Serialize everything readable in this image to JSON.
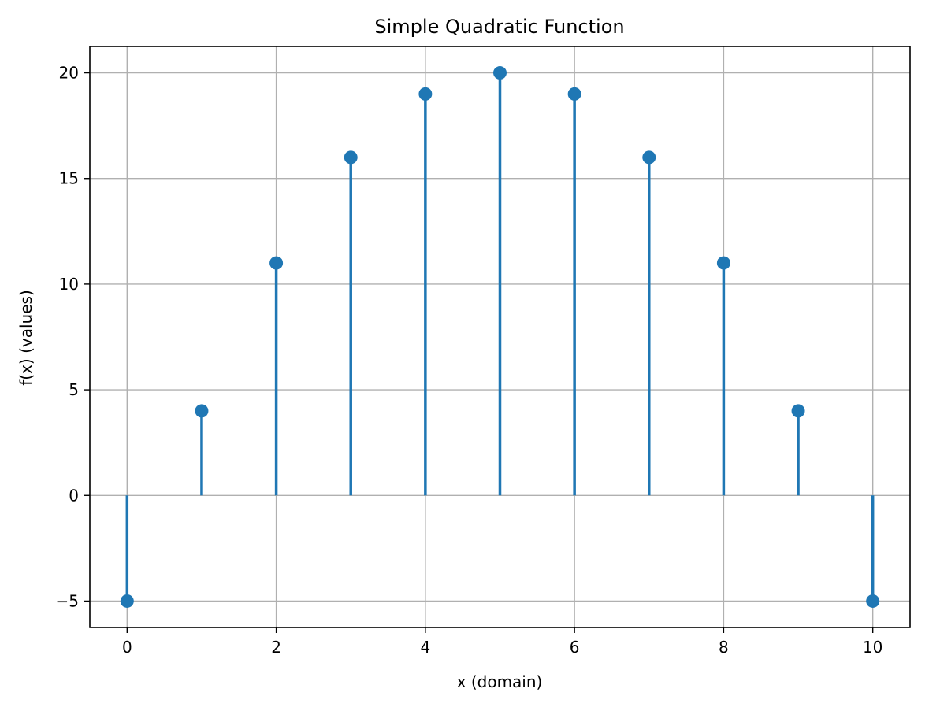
{
  "chart_data": {
    "type": "stem",
    "title": "Simple Quadratic Function",
    "xlabel": "x (domain)",
    "ylabel": "f(x) (values)",
    "x": [
      0,
      1,
      2,
      3,
      4,
      5,
      6,
      7,
      8,
      9,
      10
    ],
    "y": [
      -5,
      4,
      11,
      16,
      19,
      20,
      19,
      16,
      11,
      4,
      -5
    ],
    "xlim": [
      -0.5,
      10.5
    ],
    "ylim": [
      -6.25,
      21.25
    ],
    "xticks": [
      0,
      2,
      4,
      6,
      8,
      10
    ],
    "xtick_labels": [
      "0",
      "2",
      "4",
      "6",
      "8",
      "10"
    ],
    "yticks": [
      -5,
      0,
      5,
      10,
      15,
      20
    ],
    "ytick_labels": [
      "−5",
      "0",
      "5",
      "10",
      "15",
      "20"
    ],
    "baseline": 0,
    "grid": true,
    "colors": {
      "series": "#1f77b4",
      "grid": "#b0b0b0",
      "axes": "#000000"
    }
  }
}
